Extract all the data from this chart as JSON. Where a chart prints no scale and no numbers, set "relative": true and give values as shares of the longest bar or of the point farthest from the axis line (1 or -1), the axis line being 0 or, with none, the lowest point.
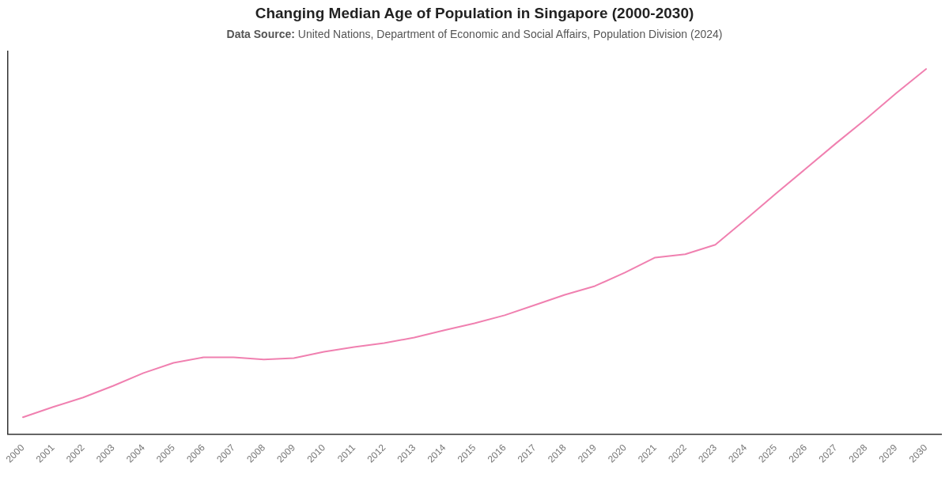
{
  "chart_data": {
    "type": "line",
    "title": "Changing Median Age of Population in Singapore (2000-2030)",
    "subtitle": "Data Source: United Nations, Department of Economic and Social Affairs, Population Division (2024)",
    "categories": [
      "2000",
      "2001",
      "2002",
      "2003",
      "2004",
      "2005",
      "2006",
      "2007",
      "2008",
      "2009",
      "2010",
      "2011",
      "2012",
      "2013",
      "2014",
      "2015",
      "2016",
      "2017",
      "2018",
      "2019",
      "2020",
      "2021",
      "2022",
      "2023",
      "2024",
      "2025",
      "2026",
      "2027",
      "2028",
      "2029",
      "2030"
    ],
    "values": [
      0.047,
      0.075,
      0.101,
      0.133,
      0.168,
      0.196,
      0.211,
      0.211,
      0.205,
      0.209,
      0.226,
      0.239,
      0.25,
      0.265,
      0.285,
      0.304,
      0.326,
      0.354,
      0.382,
      0.406,
      0.443,
      0.484,
      0.493,
      0.519,
      0.588,
      0.658,
      0.727,
      0.796,
      0.863,
      0.933,
      1
    ],
    "color": "#f080b0",
    "relative": true,
    "marker": "none"
  }
}
